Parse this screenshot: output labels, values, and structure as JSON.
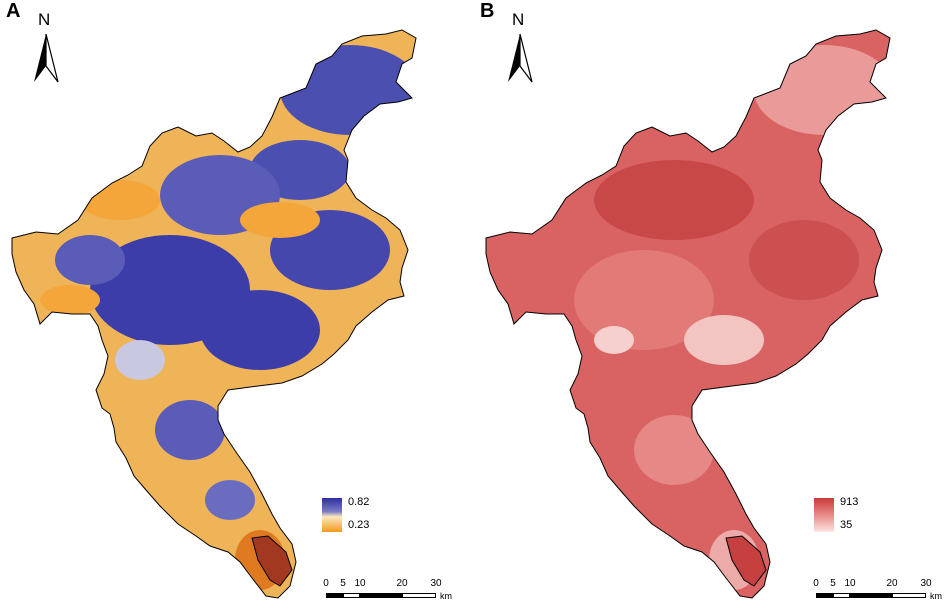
{
  "panels": [
    {
      "letter": "A",
      "north_label": "N",
      "legend": {
        "max": "0.82",
        "min": "0.23",
        "color_high": "#2e2f9e",
        "color_low": "#f39a1c"
      },
      "scale": {
        "ticks": [
          "0",
          "5",
          "10",
          "20",
          "30"
        ],
        "unit": "km"
      }
    },
    {
      "letter": "B",
      "north_label": "N",
      "legend": {
        "max": "913",
        "min": "35",
        "color_high": "#c73b3b",
        "color_low": "#fbd9d7"
      },
      "scale": {
        "ticks": [
          "0",
          "5",
          "10",
          "20",
          "30"
        ],
        "unit": "km"
      }
    }
  ]
}
